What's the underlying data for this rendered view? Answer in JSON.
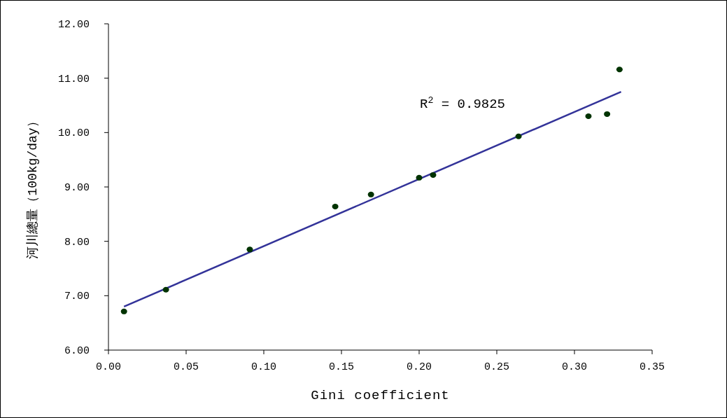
{
  "chart_data": {
    "type": "scatter",
    "xlabel": "Gini coefficient",
    "ylabel": "河川總量（100kg/day）",
    "annotations": [
      "R$^{2}$ = 0.9825"
    ],
    "series": [
      {
        "color": "#003300",
        "marker": "circle",
        "x": [
          0.01,
          0.037,
          0.091,
          0.146,
          0.169,
          0.2,
          0.209,
          0.264,
          0.309,
          0.321,
          0.329
        ],
        "values": [
          6.71,
          7.11,
          7.85,
          8.64,
          8.86,
          9.17,
          9.22,
          9.93,
          10.3,
          10.34,
          11.16
        ]
      },
      {
        "type": "line",
        "color": "#333399",
        "marker": "none",
        "line_style": "solid",
        "x": [
          0.01,
          0.33
        ],
        "values": [
          6.8,
          10.75
        ]
      }
    ],
    "xlim": [
      0,
      0.35
    ],
    "ylim": [
      6,
      12
    ],
    "xticks": [
      {
        "value": 0,
        "label": "0.00"
      },
      {
        "value": 0.05,
        "label": "0.05"
      },
      {
        "value": 0.1,
        "label": "0.10"
      },
      {
        "value": 0.15,
        "label": "0.15"
      },
      {
        "value": 0.2,
        "label": "0.20"
      },
      {
        "value": 0.25,
        "label": "0.25"
      },
      {
        "value": 0.3,
        "label": "0.30"
      },
      {
        "value": 0.35,
        "label": "0.35"
      }
    ],
    "yticks": [
      {
        "value": 6,
        "label": "6.00"
      },
      {
        "value": 7,
        "label": "7.00"
      },
      {
        "value": 8,
        "label": "8.00"
      },
      {
        "value": 9,
        "label": "9.00"
      },
      {
        "value": 10,
        "label": "10.00"
      },
      {
        "value": 11,
        "label": "11.00"
      },
      {
        "value": 12,
        "label": "12.00"
      }
    ],
    "grid": false
  }
}
